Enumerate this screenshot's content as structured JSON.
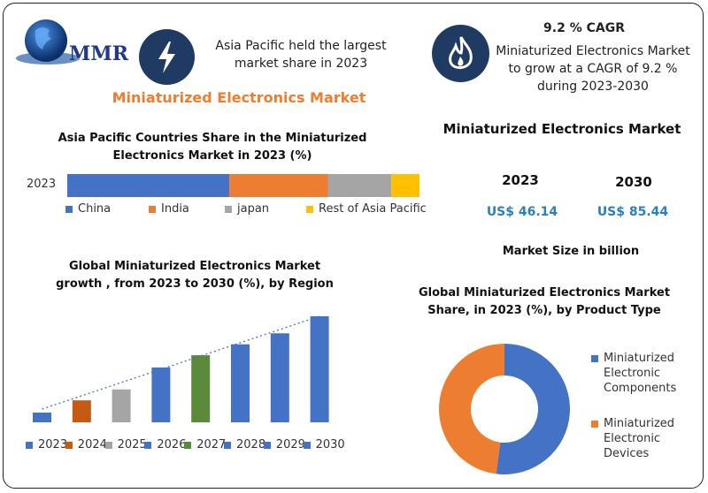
{
  "brand": {
    "logo_text": "MMR"
  },
  "header": {
    "title": "Miniaturized Electronics Market",
    "callout1": {
      "text": "Asia Pacific held the largest market share in 2023"
    },
    "callout2": {
      "title": "9.2 % CAGR",
      "text": "Miniaturized Electronics Market to grow at a CAGR of 9.2 % during 2023-2030"
    }
  },
  "market_size": {
    "title": "Miniaturized Electronics Market",
    "year1": "2023",
    "value1": "US$ 46.14",
    "year2": "2030",
    "value2": "US$ 85.44",
    "footer": "Market Size in billion"
  },
  "colors": {
    "blue": "#4472c4",
    "orange": "#ed7d31",
    "gray": "#a5a5a5",
    "yellow": "#ffc000",
    "green": "#5a8a3a",
    "dark_orange": "#c55a11",
    "navy": "#1f3a63"
  },
  "chart_data": [
    {
      "type": "bar",
      "orientation": "horizontal-stacked",
      "title": "Asia Pacific Countries Share in the  Miniaturized Electronics  Market in 2023 (%)",
      "categories": [
        "2023"
      ],
      "series": [
        {
          "name": "China",
          "values": [
            46
          ],
          "color": "#4472c4"
        },
        {
          "name": "India",
          "values": [
            28
          ],
          "color": "#ed7d31"
        },
        {
          "name": "japan",
          "values": [
            18
          ],
          "color": "#a5a5a5"
        },
        {
          "name": "Rest of Asia Pacific",
          "values": [
            8
          ],
          "color": "#ffc000"
        }
      ]
    },
    {
      "type": "bar",
      "title": "Global Miniaturized Electronics Market growth , from 2023 to 2030 (%), by Region",
      "categories": [
        "2023",
        "2024",
        "2025",
        "2026",
        "2027",
        "2028",
        "2029",
        "2030"
      ],
      "values": [
        8,
        18,
        27,
        45,
        55,
        64,
        73,
        87
      ],
      "colors": [
        "#4472c4",
        "#c55a11",
        "#a5a5a5",
        "#4472c4",
        "#5a8a3a",
        "#4472c4",
        "#4472c4",
        "#4472c4"
      ],
      "ylim": [
        0,
        100
      ],
      "trendline": true
    },
    {
      "type": "pie",
      "donut": true,
      "title": "Global Miniaturized  Electronics Market Share, in 2023 (%), by Product Type",
      "labels": [
        "Miniaturized Electronic Components",
        "Miniaturized Electronic Devices"
      ],
      "values": [
        52,
        48
      ],
      "colors": [
        "#4472c4",
        "#ed7d31"
      ]
    }
  ]
}
